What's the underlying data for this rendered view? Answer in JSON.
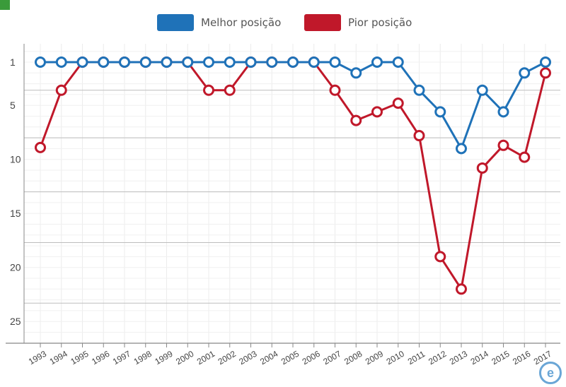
{
  "legend": [
    {
      "label": "Melhor posição",
      "color": "#1f72b8"
    },
    {
      "label": "Pior posição",
      "color": "#c0182a"
    }
  ],
  "chart_data": {
    "type": "line",
    "categories": [
      "1993",
      "1994",
      "1995",
      "1996",
      "1997",
      "1998",
      "1999",
      "2000",
      "2001",
      "2002",
      "2003",
      "2004",
      "2005",
      "2006",
      "2007",
      "2008",
      "2009",
      "2010",
      "2011",
      "2012",
      "2013",
      "2014",
      "2015",
      "2016",
      "2017"
    ],
    "series": [
      {
        "name": "Melhor posição",
        "color": "#1f72b8",
        "values": [
          1,
          1,
          1,
          1,
          1,
          1,
          1,
          1,
          1,
          1,
          1,
          1,
          1,
          1,
          1,
          2,
          1,
          1,
          3.6,
          5.6,
          9,
          3.6,
          5.6,
          2,
          1
        ]
      },
      {
        "name": "Pior posição",
        "color": "#c0182a",
        "values": [
          8.9,
          3.6,
          1,
          1,
          1,
          1,
          1,
          1,
          3.6,
          3.6,
          1,
          1,
          1,
          1,
          3.6,
          6.4,
          5.6,
          4.8,
          7.8,
          19,
          22,
          10.8,
          8.7,
          9.8,
          2
        ]
      }
    ],
    "y_ticks": [
      "1",
      "5",
      "10",
      "15",
      "20",
      "25"
    ],
    "y_tick_values": [
      1,
      5,
      10,
      15,
      20,
      25
    ],
    "ylim": [
      -1,
      26.5
    ],
    "y_inverted": true,
    "grid": true,
    "legend_position": "top"
  },
  "badge": "e"
}
